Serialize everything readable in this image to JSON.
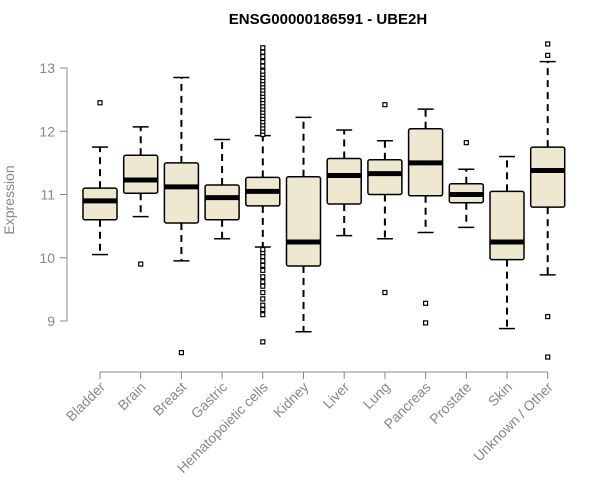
{
  "chart_data": {
    "type": "box",
    "title": "ENSG00000186591 - UBE2H",
    "xlabel": "",
    "ylabel": "Expression",
    "ylim": [
      8.5,
      13.5
    ],
    "yticks": [
      9,
      10,
      11,
      12,
      13
    ],
    "box_fill": "#EFE8D0",
    "median_color": "#000000",
    "axis_color": "#888888",
    "categories": [
      {
        "name": "Bladder",
        "whisker_low": 10.05,
        "q1": 10.6,
        "median": 10.9,
        "q3": 11.1,
        "whisker_high": 11.75,
        "outliers": [
          12.45
        ]
      },
      {
        "name": "Brain",
        "whisker_low": 10.65,
        "q1": 11.02,
        "median": 11.23,
        "q3": 11.62,
        "whisker_high": 12.07,
        "outliers": [
          9.9
        ]
      },
      {
        "name": "Breast",
        "whisker_low": 9.95,
        "q1": 10.55,
        "median": 11.12,
        "q3": 11.5,
        "whisker_high": 12.85,
        "outliers": [
          8.5
        ]
      },
      {
        "name": "Gastric",
        "whisker_low": 10.3,
        "q1": 10.6,
        "median": 10.95,
        "q3": 11.15,
        "whisker_high": 11.87,
        "outliers": []
      },
      {
        "name": "Hematopoietic cells",
        "whisker_low": 10.17,
        "q1": 10.82,
        "median": 11.05,
        "q3": 11.27,
        "whisker_high": 11.93,
        "outliers": [
          8.67,
          9.1,
          9.18,
          9.25,
          9.35,
          9.45,
          9.55,
          9.62,
          9.7,
          9.8,
          9.88,
          9.95,
          10.02,
          10.08,
          10.13,
          11.95,
          12.0,
          12.05,
          12.1,
          12.15,
          12.2,
          12.25,
          12.3,
          12.35,
          12.4,
          12.45,
          12.5,
          12.55,
          12.6,
          12.65,
          12.7,
          12.75,
          12.8,
          12.85,
          12.9,
          12.95,
          13.03,
          13.1,
          13.18,
          13.25,
          13.32
        ]
      },
      {
        "name": "Kidney",
        "whisker_low": 8.83,
        "q1": 9.87,
        "median": 10.25,
        "q3": 11.28,
        "whisker_high": 12.22,
        "outliers": []
      },
      {
        "name": "Liver",
        "whisker_low": 10.35,
        "q1": 10.85,
        "median": 11.3,
        "q3": 11.57,
        "whisker_high": 12.02,
        "outliers": []
      },
      {
        "name": "Lung",
        "whisker_low": 10.3,
        "q1": 11.0,
        "median": 11.33,
        "q3": 11.55,
        "whisker_high": 11.85,
        "outliers": [
          9.45,
          12.42
        ]
      },
      {
        "name": "Pancreas",
        "whisker_low": 10.4,
        "q1": 10.98,
        "median": 11.5,
        "q3": 12.04,
        "whisker_high": 12.35,
        "outliers": [
          8.97,
          9.28
        ]
      },
      {
        "name": "Prostate",
        "whisker_low": 10.48,
        "q1": 10.87,
        "median": 11.0,
        "q3": 11.17,
        "whisker_high": 11.4,
        "outliers": [
          11.82
        ]
      },
      {
        "name": "Skin",
        "whisker_low": 8.88,
        "q1": 9.97,
        "median": 10.25,
        "q3": 11.05,
        "whisker_high": 11.6,
        "outliers": []
      },
      {
        "name": "Unknown / Other",
        "whisker_low": 9.73,
        "q1": 10.8,
        "median": 11.38,
        "q3": 11.75,
        "whisker_high": 13.1,
        "outliers": [
          8.43,
          9.07,
          13.2,
          13.38
        ]
      }
    ]
  }
}
